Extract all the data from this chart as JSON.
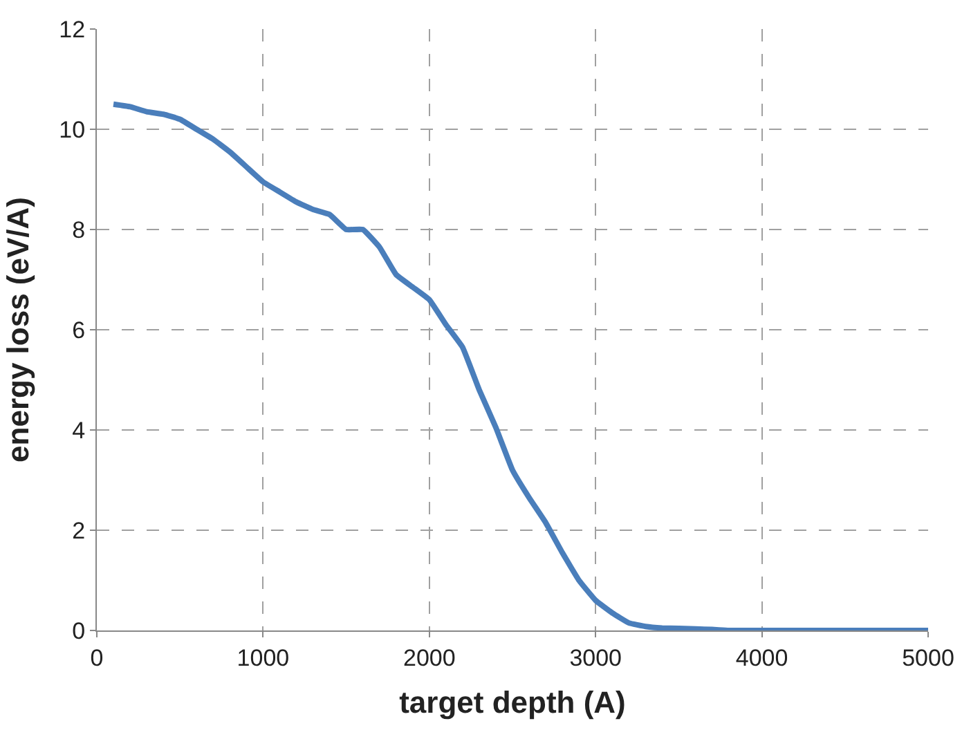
{
  "chart_data": {
    "type": "line",
    "xlabel": "target depth (A)",
    "ylabel": "energy loss (eV/A)",
    "x": [
      100,
      200,
      300,
      400,
      500,
      600,
      700,
      800,
      900,
      1000,
      1100,
      1200,
      1300,
      1400,
      1500,
      1600,
      1700,
      1800,
      1900,
      2000,
      2100,
      2200,
      2300,
      2400,
      2500,
      2600,
      2700,
      2800,
      2900,
      3000,
      3100,
      3200,
      3300,
      3400,
      3500,
      3700,
      3800,
      4000,
      5000
    ],
    "series": [
      {
        "color": "#4a7ebb",
        "values": [
          10.5,
          10.45,
          10.35,
          10.3,
          10.2,
          10.0,
          9.8,
          9.55,
          9.25,
          8.95,
          8.75,
          8.55,
          8.4,
          8.3,
          8.0,
          8.0,
          7.65,
          7.1,
          6.85,
          6.6,
          6.1,
          5.65,
          4.8,
          4.05,
          3.2,
          2.65,
          2.15,
          1.55,
          1.0,
          0.6,
          0.35,
          0.15,
          0.08,
          0.05,
          0.04,
          0.02,
          0,
          0,
          0
        ]
      }
    ],
    "xlim": [
      0,
      5000
    ],
    "xticks": [
      0,
      1000,
      2000,
      3000,
      4000,
      5000
    ],
    "ylim": [
      0,
      12
    ],
    "yticks": [
      0,
      2,
      4,
      6,
      8,
      10,
      12
    ],
    "grid": true,
    "legend": false,
    "marker": "none",
    "line_style": "solid"
  }
}
